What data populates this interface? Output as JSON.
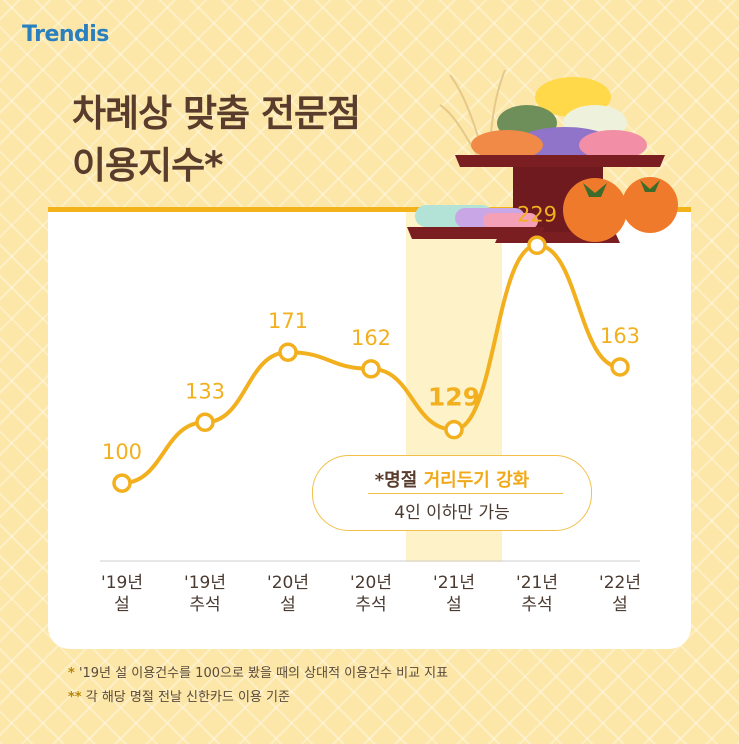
{
  "brand": {
    "logo_text": "Trendis"
  },
  "title": {
    "line1": "차례상 맞춤 전문점",
    "line2": "이용지수*"
  },
  "chart_data": {
    "type": "line",
    "categories": [
      "'19년 설",
      "'19년 추석",
      "'20년 설",
      "'20년 추석",
      "'21년 설",
      "'21년 추석",
      "'22년 설"
    ],
    "category_lines": [
      [
        "'19년",
        "설"
      ],
      [
        "'19년",
        "추석"
      ],
      [
        "'20년",
        "설"
      ],
      [
        "'20년",
        "추석"
      ],
      [
        "'21년",
        "설"
      ],
      [
        "'21년",
        "추석"
      ],
      [
        "'22년",
        "설"
      ]
    ],
    "values": [
      100,
      133,
      171,
      162,
      129,
      229,
      163
    ],
    "highlight_index": 4,
    "ylim": [
      80,
      240
    ],
    "colors": {
      "line": "#f2b01e",
      "highlight_band": "#fdf2c8"
    }
  },
  "annotation": {
    "prefix": "*명절 ",
    "highlight": "거리두기 강화",
    "line2": "4인 이하만 가능"
  },
  "footnotes": [
    {
      "mark": "*",
      "text": " '19년 설 이용건수를 100으로 봤을 때의 상대적 이용건수 비교 지표"
    },
    {
      "mark": "**",
      "text": " 각 해당 명절 전날 신한카드 이용 기준"
    }
  ]
}
